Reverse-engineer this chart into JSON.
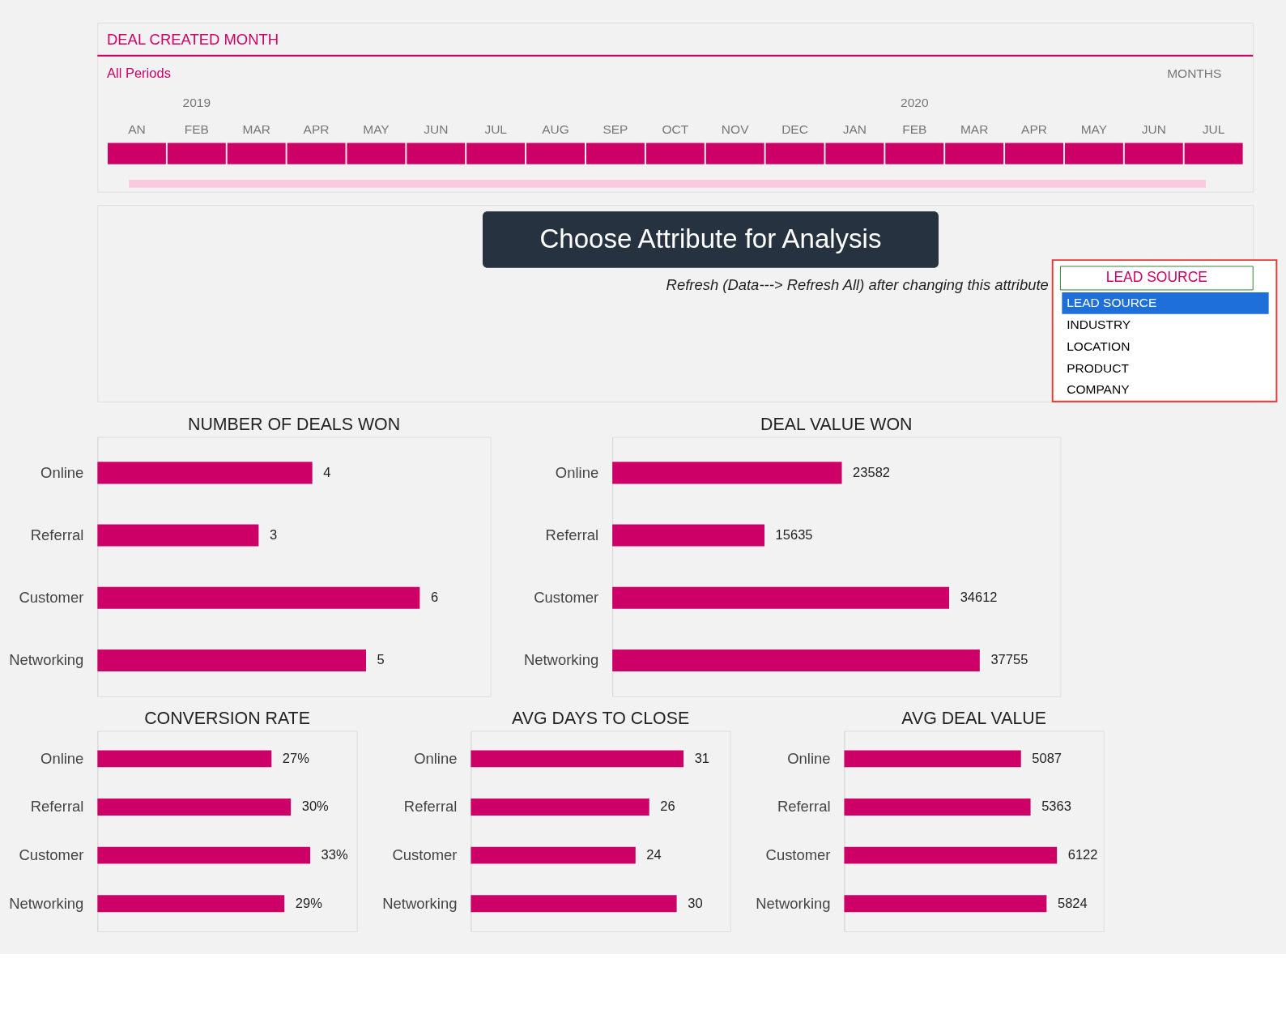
{
  "chart_data": [
    {
      "type": "other",
      "title": "DEAL CREATED MONTH",
      "subtitle": "All Periods",
      "annotations": [
        "MONTHS",
        "2019",
        "2020"
      ],
      "categories": [
        "AN",
        "FEB",
        "MAR",
        "APR",
        "MAY",
        "JUN",
        "JUL",
        "AUG",
        "SEP",
        "OCT",
        "NOV",
        "DEC",
        "JAN",
        "FEB",
        "MAR",
        "APR",
        "MAY",
        "JUN",
        "JUL"
      ],
      "color": "#cc0066"
    },
    {
      "type": "other",
      "title": "Choose Attribute for Analysis",
      "subtitle": "Refresh (Data---> Refresh All) after changing this attribute",
      "annotations": [
        "LEAD SOURCE"
      ],
      "categories": [
        "LEAD SOURCE",
        "INDUSTRY",
        "LOCATION",
        "PRODUCT",
        "COMPANY"
      ]
    },
    {
      "type": "bar",
      "orientation": "horizontal",
      "title": "NUMBER OF DEALS WON",
      "categories": [
        "Online",
        "Referral",
        "Customer",
        "Networking"
      ],
      "values": [
        4,
        3,
        6,
        5
      ],
      "color": "#cc0066",
      "data_labels": true
    },
    {
      "type": "bar",
      "orientation": "horizontal",
      "title": "DEAL VALUE WON",
      "categories": [
        "Online",
        "Referral",
        "Customer",
        "Networking"
      ],
      "values": [
        23582,
        15635,
        34612,
        37755
      ],
      "color": "#cc0066",
      "data_labels": true
    },
    {
      "type": "bar",
      "orientation": "horizontal",
      "title": "CONVERSION RATE",
      "categories": [
        "Online",
        "Referral",
        "Customer",
        "Networking"
      ],
      "values": [
        27,
        30,
        33,
        29
      ],
      "value_labels": [
        "27%",
        "30%",
        "33%",
        "29%"
      ],
      "color": "#cc0066"
    },
    {
      "type": "bar",
      "orientation": "horizontal",
      "title": "AVG DAYS TO CLOSE",
      "categories": [
        "Online",
        "Referral",
        "Customer",
        "Networking"
      ],
      "values": [
        31,
        26,
        24,
        30
      ],
      "color": "#cc0066",
      "data_labels": true
    },
    {
      "type": "bar",
      "orientation": "horizontal",
      "title": "AVG DEAL VALUE",
      "categories": [
        "Online",
        "Referral",
        "Customer",
        "Networking"
      ],
      "values": [
        5087,
        5363,
        6122,
        5824
      ],
      "color": "#cc0066",
      "data_labels": true
    }
  ]
}
